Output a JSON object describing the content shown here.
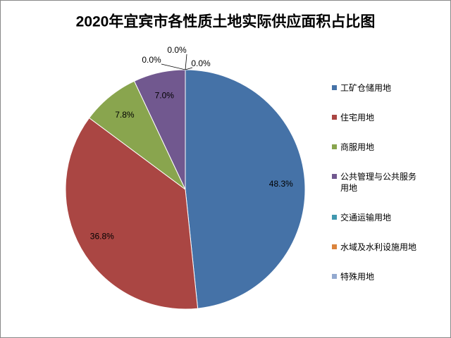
{
  "chart_data": {
    "type": "pie",
    "title": "2020年宜宾市各性质土地实际供应面积占比图",
    "categories": [
      "工矿仓储用地",
      "住宅用地",
      "商服用地",
      "公共管理与公共服务用地",
      "交通运输用地",
      "水域及水利设施用地",
      "特殊用地"
    ],
    "values": [
      48.3,
      36.8,
      7.8,
      7.0,
      0.0,
      0.0,
      0.0
    ],
    "value_labels": [
      "48.3%",
      "36.8%",
      "7.8%",
      "7.0%",
      "0.0%",
      "0.0%",
      "0.0%"
    ],
    "colors": [
      "#4572A7",
      "#AA4643",
      "#89A54E",
      "#71588F",
      "#4198AF",
      "#DB843D",
      "#93A9CF"
    ],
    "legend": "right"
  }
}
